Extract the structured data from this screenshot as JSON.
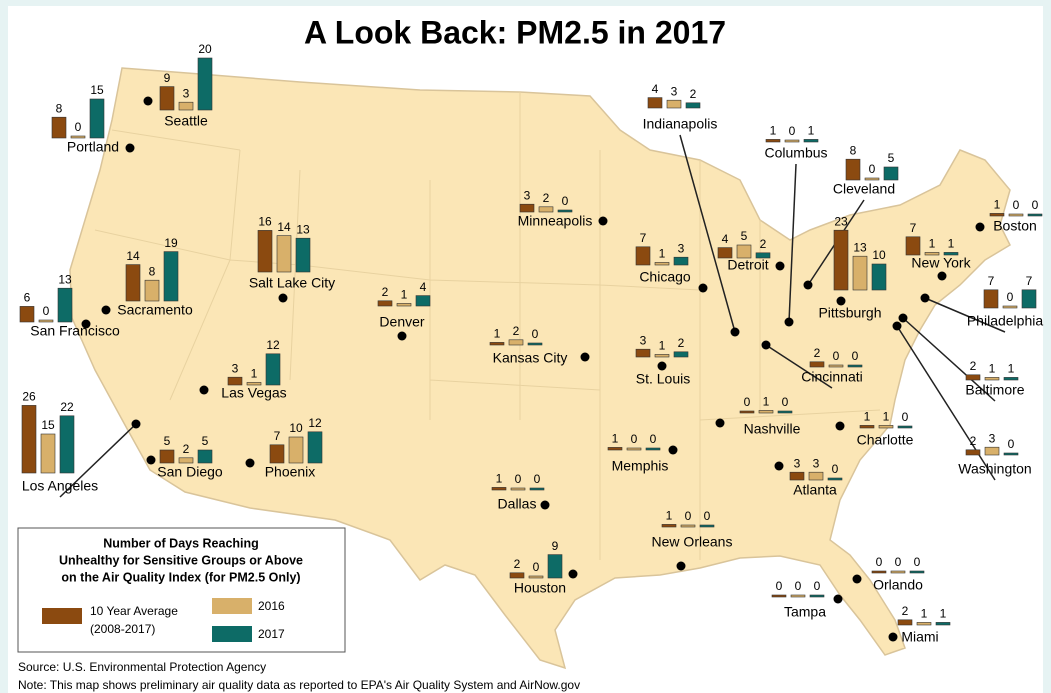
{
  "title": "A Look Back: PM2.5 in 2017",
  "legend": {
    "title": [
      "Number of Days Reaching",
      "Unhealthy for Sensitive Groups or Above",
      "on the Air Quality Index (for PM2.5 Only)"
    ],
    "series": [
      {
        "name": "10 Year Average",
        "period": "(2008-2017)",
        "color": "#8b4a10"
      },
      {
        "name": "2016",
        "color": "#d8b06a"
      },
      {
        "name": "2017",
        "color": "#0d6b66"
      }
    ]
  },
  "cities": [
    {
      "name": "Seattle",
      "values": [
        9,
        3,
        20
      ]
    },
    {
      "name": "Portland",
      "values": [
        8,
        0,
        15
      ]
    },
    {
      "name": "San Francisco",
      "values": [
        6,
        0,
        13
      ]
    },
    {
      "name": "Sacramento",
      "values": [
        14,
        8,
        19
      ]
    },
    {
      "name": "Los Angeles",
      "values": [
        26,
        15,
        22
      ]
    },
    {
      "name": "San Diego",
      "values": [
        5,
        2,
        5
      ]
    },
    {
      "name": "Las Vegas",
      "values": [
        3,
        1,
        12
      ]
    },
    {
      "name": "Phoenix",
      "values": [
        7,
        10,
        12
      ]
    },
    {
      "name": "Salt Lake City",
      "values": [
        16,
        14,
        13
      ]
    },
    {
      "name": "Denver",
      "values": [
        2,
        1,
        4
      ]
    },
    {
      "name": "Kansas City",
      "values": [
        1,
        2,
        0
      ]
    },
    {
      "name": "Minneapolis",
      "values": [
        3,
        2,
        0
      ]
    },
    {
      "name": "Chicago",
      "values": [
        7,
        1,
        3
      ]
    },
    {
      "name": "St. Louis",
      "values": [
        3,
        1,
        2
      ]
    },
    {
      "name": "Indianapolis",
      "values": [
        4,
        3,
        2
      ]
    },
    {
      "name": "Detroit",
      "values": [
        4,
        5,
        2
      ]
    },
    {
      "name": "Columbus",
      "values": [
        1,
        0,
        1
      ]
    },
    {
      "name": "Cleveland",
      "values": [
        8,
        0,
        5
      ]
    },
    {
      "name": "Cincinnati",
      "values": [
        2,
        0,
        0
      ]
    },
    {
      "name": "Pittsburgh",
      "values": [
        23,
        13,
        10
      ]
    },
    {
      "name": "Boston",
      "values": [
        1,
        0,
        0
      ]
    },
    {
      "name": "New York",
      "values": [
        7,
        1,
        1
      ]
    },
    {
      "name": "Philadelphia",
      "values": [
        7,
        0,
        7
      ]
    },
    {
      "name": "Baltimore",
      "values": [
        2,
        1,
        1
      ]
    },
    {
      "name": "Washington",
      "values": [
        2,
        3,
        0
      ]
    },
    {
      "name": "Nashville",
      "values": [
        0,
        1,
        0
      ]
    },
    {
      "name": "Charlotte",
      "values": [
        1,
        1,
        0
      ]
    },
    {
      "name": "Memphis",
      "values": [
        1,
        0,
        0
      ]
    },
    {
      "name": "Atlanta",
      "values": [
        3,
        3,
        0
      ]
    },
    {
      "name": "Dallas",
      "values": [
        1,
        0,
        0
      ]
    },
    {
      "name": "New Orleans",
      "values": [
        1,
        0,
        0
      ]
    },
    {
      "name": "Houston",
      "values": [
        2,
        0,
        9
      ]
    },
    {
      "name": "Orlando",
      "values": [
        0,
        0,
        0
      ]
    },
    {
      "name": "Tampa",
      "values": [
        0,
        0,
        0
      ]
    },
    {
      "name": "Miami",
      "values": [
        2,
        1,
        1
      ]
    }
  ],
  "source": "Source: U.S. Environmental Protection Agency",
  "note": "Note: This map shows preliminary air quality data as reported to EPA's Air Quality System and AirNow.gov"
}
